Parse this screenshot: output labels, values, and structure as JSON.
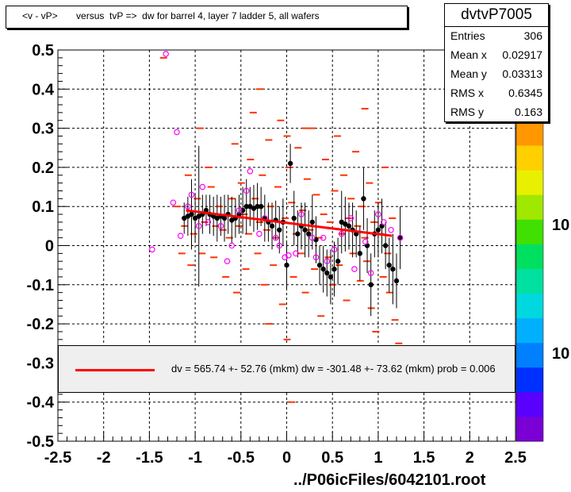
{
  "title": "<v - vP>       versus  tvP =>  dw for barrel 4, layer 7 ladder 5, all wafers",
  "stats": {
    "name": "dvtvP7005",
    "rows": [
      {
        "label": "Entries",
        "value": "306"
      },
      {
        "label": "Mean x",
        "value": "0.02917"
      },
      {
        "label": "Mean y",
        "value": "0.03313"
      },
      {
        "label": "RMS x",
        "value": "0.6345"
      },
      {
        "label": "RMS y",
        "value": "0.163"
      }
    ]
  },
  "fit_legend": "dv =  565.74 +- 52.76 (mkm) dw = -301.48 +- 73.62 (mkm) prob = 0.006",
  "footer": "../P06icFiles/6042101.root",
  "palette_labels": [
    "10",
    "10"
  ],
  "colors": {
    "hist": "#ff3300",
    "profile": "#000000",
    "mean_marker": "#ff00ff",
    "fit": "#ff0000"
  },
  "chart_data": {
    "type": "scatter",
    "xlim": [
      -2.5,
      2.5
    ],
    "ylim": [
      -0.5,
      0.5
    ],
    "x_ticks": [
      "-2.5",
      "-2",
      "-1.5",
      "-1",
      "-0.5",
      "0",
      "0.5",
      "1",
      "1.5",
      "2",
      "2.5"
    ],
    "y_ticks": [
      "0.5",
      "0.4",
      "0.3",
      "0.2",
      "0.1",
      "0",
      "-0.1",
      "-0.2",
      "-0.3",
      "-0.4",
      "-0.5"
    ],
    "grid": true,
    "fit_line": {
      "x": [
        -1.1,
        1.15
      ],
      "y": [
        0.09,
        0.025
      ]
    },
    "profile": [
      {
        "x": -1.12,
        "y": 0.07,
        "err": 0.04
      },
      {
        "x": -1.08,
        "y": 0.075,
        "err": 0.05
      },
      {
        "x": -1.04,
        "y": 0.08,
        "err": 0.09
      },
      {
        "x": -1.0,
        "y": 0.07,
        "err": 0.06
      },
      {
        "x": -0.96,
        "y": 0.075,
        "err": 0.18
      },
      {
        "x": -0.92,
        "y": 0.08,
        "err": 0.05
      },
      {
        "x": -0.88,
        "y": 0.09,
        "err": 0.04
      },
      {
        "x": -0.84,
        "y": 0.08,
        "err": 0.05
      },
      {
        "x": -0.8,
        "y": 0.075,
        "err": 0.05
      },
      {
        "x": -0.76,
        "y": 0.07,
        "err": 0.06
      },
      {
        "x": -0.72,
        "y": 0.075,
        "err": 0.05
      },
      {
        "x": -0.68,
        "y": 0.07,
        "err": 0.06
      },
      {
        "x": -0.64,
        "y": 0.08,
        "err": 0.05
      },
      {
        "x": -0.6,
        "y": 0.065,
        "err": 0.06
      },
      {
        "x": -0.56,
        "y": 0.07,
        "err": 0.05
      },
      {
        "x": -0.52,
        "y": 0.08,
        "err": 0.05
      },
      {
        "x": -0.48,
        "y": 0.09,
        "err": 0.06
      },
      {
        "x": -0.44,
        "y": 0.1,
        "err": 0.07
      },
      {
        "x": -0.4,
        "y": 0.1,
        "err": 0.05
      },
      {
        "x": -0.36,
        "y": 0.095,
        "err": 0.06
      },
      {
        "x": -0.32,
        "y": 0.1,
        "err": 0.06
      },
      {
        "x": -0.28,
        "y": 0.1,
        "err": 0.05
      },
      {
        "x": -0.24,
        "y": 0.07,
        "err": 0.06
      },
      {
        "x": -0.2,
        "y": 0.06,
        "err": 0.05
      },
      {
        "x": -0.16,
        "y": 0.05,
        "err": 0.06
      },
      {
        "x": -0.12,
        "y": 0.065,
        "err": 0.05
      },
      {
        "x": -0.08,
        "y": 0.04,
        "err": 0.06
      },
      {
        "x": -0.04,
        "y": 0.06,
        "err": 0.06
      },
      {
        "x": 0.0,
        "y": -0.05,
        "err": 0.06
      },
      {
        "x": 0.04,
        "y": 0.21,
        "err": 0.05
      },
      {
        "x": 0.08,
        "y": 0.07,
        "err": 0.07
      },
      {
        "x": 0.12,
        "y": 0.03,
        "err": 0.06
      },
      {
        "x": 0.16,
        "y": 0.05,
        "err": 0.06
      },
      {
        "x": 0.2,
        "y": 0.04,
        "err": 0.07
      },
      {
        "x": 0.24,
        "y": 0.03,
        "err": 0.06
      },
      {
        "x": 0.28,
        "y": 0.06,
        "err": 0.07
      },
      {
        "x": 0.32,
        "y": 0.015,
        "err": 0.06
      },
      {
        "x": 0.36,
        "y": -0.05,
        "err": 0.05
      },
      {
        "x": 0.4,
        "y": -0.06,
        "err": 0.06
      },
      {
        "x": 0.44,
        "y": -0.07,
        "err": 0.06
      },
      {
        "x": 0.48,
        "y": -0.08,
        "err": 0.07
      },
      {
        "x": 0.52,
        "y": -0.06,
        "err": 0.07
      },
      {
        "x": 0.56,
        "y": -0.04,
        "err": 0.06
      },
      {
        "x": 0.6,
        "y": 0.06,
        "err": 0.08
      },
      {
        "x": 0.64,
        "y": 0.055,
        "err": 0.07
      },
      {
        "x": 0.68,
        "y": 0.05,
        "err": 0.06
      },
      {
        "x": 0.72,
        "y": 0.04,
        "err": 0.07
      },
      {
        "x": 0.76,
        "y": 0.03,
        "err": 0.06
      },
      {
        "x": 0.8,
        "y": -0.02,
        "err": 0.07
      },
      {
        "x": 0.84,
        "y": 0.12,
        "err": 0.08
      },
      {
        "x": 0.88,
        "y": 0.0,
        "err": 0.07
      },
      {
        "x": 0.92,
        "y": -0.1,
        "err": 0.08
      },
      {
        "x": 0.96,
        "y": 0.03,
        "err": 0.06
      },
      {
        "x": 1.0,
        "y": 0.04,
        "err": 0.07
      },
      {
        "x": 1.04,
        "y": 0.05,
        "err": 0.07
      },
      {
        "x": 1.08,
        "y": 0.0,
        "err": 0.06
      },
      {
        "x": 1.12,
        "y": -0.05,
        "err": 0.07
      },
      {
        "x": 1.16,
        "y": -0.06,
        "err": 0.09
      },
      {
        "x": 1.2,
        "y": -0.09,
        "err": 0.07
      },
      {
        "x": 1.24,
        "y": 0.02,
        "err": 0.08
      }
    ],
    "mean_markers": [
      {
        "x": -1.47,
        "y": -0.01
      },
      {
        "x": -1.32,
        "y": 0.49
      },
      {
        "x": -1.24,
        "y": 0.11
      },
      {
        "x": -1.2,
        "y": 0.29
      },
      {
        "x": -1.16,
        "y": 0.025
      },
      {
        "x": -1.08,
        "y": 0.1
      },
      {
        "x": -1.04,
        "y": 0.13
      },
      {
        "x": -0.96,
        "y": 0.05
      },
      {
        "x": -0.92,
        "y": 0.15
      },
      {
        "x": -0.86,
        "y": 0.06
      },
      {
        "x": -0.72,
        "y": 0.05
      },
      {
        "x": -0.65,
        "y": -0.04
      },
      {
        "x": -0.6,
        "y": 0.0
      },
      {
        "x": -0.52,
        "y": 0.09
      },
      {
        "x": -0.44,
        "y": 0.14
      },
      {
        "x": -0.4,
        "y": 0.19
      },
      {
        "x": -0.3,
        "y": 0.03
      },
      {
        "x": -0.24,
        "y": 0.07
      },
      {
        "x": -0.12,
        "y": 0.02
      },
      {
        "x": -0.08,
        "y": 0.0
      },
      {
        "x": -0.02,
        "y": -0.03
      },
      {
        "x": 0.02,
        "y": -0.025
      },
      {
        "x": 0.1,
        "y": -0.02
      },
      {
        "x": 0.16,
        "y": 0.08
      },
      {
        "x": 0.28,
        "y": 0.02
      },
      {
        "x": 0.32,
        "y": -0.03
      },
      {
        "x": 0.4,
        "y": 0.02
      },
      {
        "x": 0.44,
        "y": -0.04
      },
      {
        "x": 0.52,
        "y": -0.01
      },
      {
        "x": 0.6,
        "y": 0.03
      },
      {
        "x": 0.7,
        "y": 0.07
      },
      {
        "x": 0.74,
        "y": -0.06
      },
      {
        "x": 0.86,
        "y": 0.01
      },
      {
        "x": 0.92,
        "y": -0.07
      },
      {
        "x": 1.0,
        "y": 0.08
      },
      {
        "x": 1.06,
        "y": 0.06
      },
      {
        "x": 1.14,
        "y": 0.04
      },
      {
        "x": 1.24,
        "y": 0.02
      }
    ],
    "scatter_bins": [
      {
        "x": -1.35,
        "y": 0.48
      },
      {
        "x": -1.2,
        "y": 0.1
      },
      {
        "x": -1.15,
        "y": -0.02
      },
      {
        "x": -1.12,
        "y": 0.05
      },
      {
        "x": -1.08,
        "y": 0.18
      },
      {
        "x": -1.05,
        "y": -0.05
      },
      {
        "x": -1.02,
        "y": 0.03
      },
      {
        "x": -0.98,
        "y": 0.12
      },
      {
        "x": -0.95,
        "y": 0.3
      },
      {
        "x": -0.93,
        "y": -0.02
      },
      {
        "x": -0.9,
        "y": 0.06
      },
      {
        "x": -0.86,
        "y": 0.2
      },
      {
        "x": -0.83,
        "y": 0.15
      },
      {
        "x": -0.8,
        "y": -0.03
      },
      {
        "x": -0.78,
        "y": 0.05
      },
      {
        "x": -0.74,
        "y": 0.1
      },
      {
        "x": -0.7,
        "y": 0.04
      },
      {
        "x": -0.67,
        "y": -0.08
      },
      {
        "x": -0.63,
        "y": 0.02
      },
      {
        "x": -0.6,
        "y": 0.12
      },
      {
        "x": -0.57,
        "y": 0.26
      },
      {
        "x": -0.55,
        "y": -0.12
      },
      {
        "x": -0.52,
        "y": 0.05
      },
      {
        "x": -0.5,
        "y": 0.16
      },
      {
        "x": -0.47,
        "y": 0.08
      },
      {
        "x": -0.45,
        "y": -0.06
      },
      {
        "x": -0.42,
        "y": 0.03
      },
      {
        "x": -0.4,
        "y": 0.22
      },
      {
        "x": -0.37,
        "y": 0.34
      },
      {
        "x": -0.35,
        "y": 0.12
      },
      {
        "x": -0.32,
        "y": -0.02
      },
      {
        "x": -0.3,
        "y": 0.06
      },
      {
        "x": -0.27,
        "y": 0.18
      },
      {
        "x": -0.25,
        "y": -0.1
      },
      {
        "x": -0.22,
        "y": 0.04
      },
      {
        "x": -0.2,
        "y": 0.27
      },
      {
        "x": -0.18,
        "y": 0.1
      },
      {
        "x": -0.15,
        "y": -0.05
      },
      {
        "x": -0.12,
        "y": 0.02
      },
      {
        "x": -0.1,
        "y": 0.15
      },
      {
        "x": -0.07,
        "y": 0.32
      },
      {
        "x": -0.05,
        "y": -0.15
      },
      {
        "x": -0.02,
        "y": 0.07
      },
      {
        "x": 0.0,
        "y": -0.24
      },
      {
        "x": 0.02,
        "y": 0.2
      },
      {
        "x": 0.05,
        "y": 0.11
      },
      {
        "x": 0.07,
        "y": -0.08
      },
      {
        "x": 0.1,
        "y": 0.03
      },
      {
        "x": 0.12,
        "y": 0.25
      },
      {
        "x": 0.15,
        "y": -0.02
      },
      {
        "x": 0.17,
        "y": 0.09
      },
      {
        "x": 0.2,
        "y": -0.12
      },
      {
        "x": 0.22,
        "y": 0.17
      },
      {
        "x": 0.25,
        "y": 0.04
      },
      {
        "x": 0.27,
        "y": 0.3
      },
      {
        "x": 0.3,
        "y": -0.06
      },
      {
        "x": 0.32,
        "y": 0.13
      },
      {
        "x": 0.35,
        "y": 0.02
      },
      {
        "x": 0.37,
        "y": -0.18
      },
      {
        "x": 0.4,
        "y": 0.08
      },
      {
        "x": 0.42,
        "y": 0.22
      },
      {
        "x": 0.45,
        "y": -0.03
      },
      {
        "x": 0.47,
        "y": 0.06
      },
      {
        "x": 0.5,
        "y": -0.1
      },
      {
        "x": 0.52,
        "y": 0.14
      },
      {
        "x": 0.55,
        "y": 0.28
      },
      {
        "x": 0.57,
        "y": -0.05
      },
      {
        "x": 0.6,
        "y": 0.03
      },
      {
        "x": 0.62,
        "y": 0.18
      },
      {
        "x": 0.65,
        "y": -0.14
      },
      {
        "x": 0.67,
        "y": 0.07
      },
      {
        "x": 0.7,
        "y": 0.12
      },
      {
        "x": 0.72,
        "y": -0.02
      },
      {
        "x": 0.75,
        "y": 0.24
      },
      {
        "x": 0.77,
        "y": 0.05
      },
      {
        "x": 0.8,
        "y": -0.09
      },
      {
        "x": 0.82,
        "y": 0.1
      },
      {
        "x": 0.85,
        "y": 0.02
      },
      {
        "x": 0.87,
        "y": -0.04
      },
      {
        "x": 0.9,
        "y": 0.16
      },
      {
        "x": 0.92,
        "y": -0.16
      },
      {
        "x": 0.95,
        "y": 0.06
      },
      {
        "x": 0.97,
        "y": -0.22
      },
      {
        "x": 1.0,
        "y": 0.11
      },
      {
        "x": 1.02,
        "y": 0.03
      },
      {
        "x": 1.05,
        "y": -0.08
      },
      {
        "x": 1.07,
        "y": 0.2
      },
      {
        "x": 1.1,
        "y": -0.02
      },
      {
        "x": 1.12,
        "y": -0.12
      },
      {
        "x": 1.15,
        "y": 0.07
      },
      {
        "x": 1.18,
        "y": -0.19
      },
      {
        "x": 1.22,
        "y": -0.25
      },
      {
        "x": -0.2,
        "y": -0.2
      },
      {
        "x": 0.5,
        "y": -0.32
      },
      {
        "x": 0.05,
        "y": -0.4
      },
      {
        "x": 0.0,
        "y": 0.28
      },
      {
        "x": 0.2,
        "y": 0.3
      },
      {
        "x": -0.3,
        "y": 0.4
      },
      {
        "x": 0.85,
        "y": 0.35
      },
      {
        "x": -0.1,
        "y": -0.3
      }
    ]
  }
}
